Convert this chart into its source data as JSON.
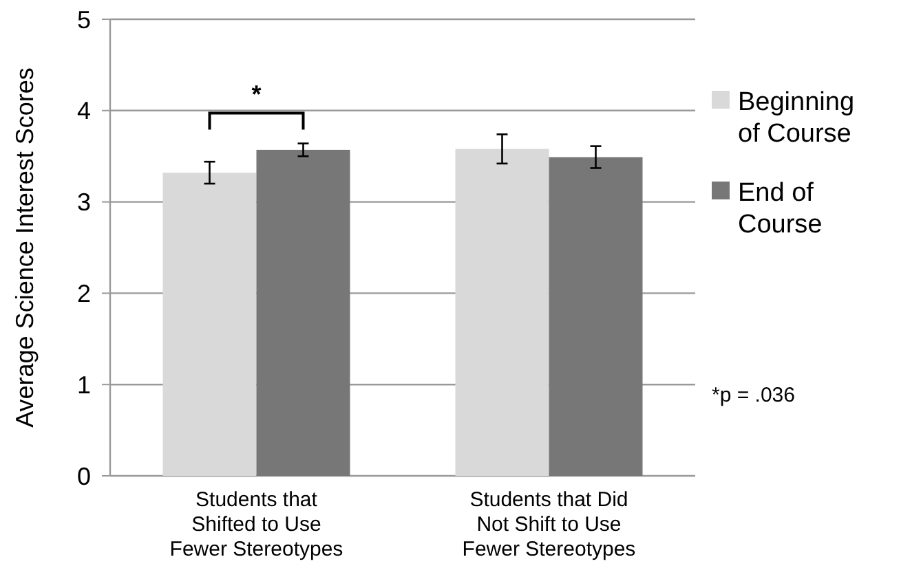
{
  "chart_data": {
    "type": "bar",
    "ylabel": "Average Science Interest Scores",
    "categories": [
      "Students that Shifted to Use Fewer Stereotypes",
      "Students that Did Not Shift to Use Fewer Stereotypes"
    ],
    "series": [
      {
        "name": "Beginning of Course",
        "color": "#d9d9d9",
        "values": [
          3.32,
          3.58
        ],
        "errors": [
          0.12,
          0.16
        ]
      },
      {
        "name": "End of Course",
        "color": "#777777",
        "values": [
          3.57,
          3.49
        ],
        "errors": [
          0.07,
          0.12
        ]
      }
    ],
    "ylim": [
      0,
      5
    ],
    "yticks": [
      0,
      1,
      2,
      3,
      4,
      5
    ],
    "grid": "y",
    "legend": "right",
    "annotations": [
      "*",
      "*p = .036"
    ]
  }
}
